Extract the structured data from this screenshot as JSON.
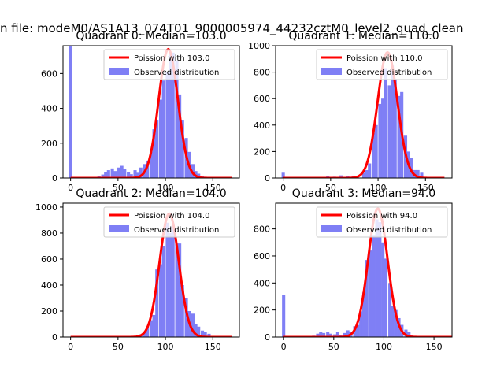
{
  "figure": {
    "suptitle": "n file: modeM0/AS1A13_074T01_9000005974_44232cztM0_level2_quad_clean"
  },
  "chart_data": [
    {
      "type": "bar",
      "title": "Quadrant 0: Median=103.0",
      "xlim": [
        -8,
        178
      ],
      "ylim": [
        0,
        760
      ],
      "xticks": [
        0,
        50,
        100,
        150
      ],
      "yticks": [
        0,
        200,
        400,
        600
      ],
      "legend": {
        "placement": "top-right",
        "line_label": "Poission with 103.0",
        "hist_label": "Observed distribution"
      },
      "poisson_mean": 103.0,
      "poisson_peak": 740,
      "hist": {
        "bin_width": 3.4,
        "bins": [
          {
            "x": 0,
            "y": 760
          },
          {
            "x": 30,
            "y": 12
          },
          {
            "x": 34,
            "y": 20
          },
          {
            "x": 37,
            "y": 32
          },
          {
            "x": 40,
            "y": 45
          },
          {
            "x": 44,
            "y": 55
          },
          {
            "x": 47,
            "y": 40
          },
          {
            "x": 51,
            "y": 60
          },
          {
            "x": 54,
            "y": 70
          },
          {
            "x": 57,
            "y": 50
          },
          {
            "x": 61,
            "y": 35
          },
          {
            "x": 64,
            "y": 22
          },
          {
            "x": 68,
            "y": 45
          },
          {
            "x": 71,
            "y": 30
          },
          {
            "x": 74,
            "y": 60
          },
          {
            "x": 78,
            "y": 80
          },
          {
            "x": 81,
            "y": 100
          },
          {
            "x": 85,
            "y": 150
          },
          {
            "x": 88,
            "y": 280
          },
          {
            "x": 91,
            "y": 330
          },
          {
            "x": 95,
            "y": 450
          },
          {
            "x": 98,
            "y": 560
          },
          {
            "x": 102,
            "y": 610
          },
          {
            "x": 105,
            "y": 710
          },
          {
            "x": 108,
            "y": 720
          },
          {
            "x": 112,
            "y": 670
          },
          {
            "x": 115,
            "y": 480
          },
          {
            "x": 118,
            "y": 330
          },
          {
            "x": 122,
            "y": 230
          },
          {
            "x": 125,
            "y": 150
          },
          {
            "x": 129,
            "y": 80
          },
          {
            "x": 132,
            "y": 40
          },
          {
            "x": 135,
            "y": 25
          },
          {
            "x": 139,
            "y": 10
          }
        ]
      }
    },
    {
      "type": "bar",
      "title": "Quadrant 1: Median=110.0",
      "xlim": [
        -8,
        178
      ],
      "ylim": [
        0,
        1000
      ],
      "xticks": [
        0,
        50,
        100,
        150
      ],
      "yticks": [
        0,
        200,
        400,
        600,
        800,
        1000
      ],
      "legend": {
        "placement": "top-right",
        "line_label": "Poission with 110.0",
        "hist_label": "Observed distribution"
      },
      "poisson_mean": 110.0,
      "poisson_peak": 950,
      "hist": {
        "bin_width": 3.4,
        "bins": [
          {
            "x": 0,
            "y": 40
          },
          {
            "x": 47,
            "y": 15
          },
          {
            "x": 54,
            "y": 10
          },
          {
            "x": 61,
            "y": 20
          },
          {
            "x": 68,
            "y": 12
          },
          {
            "x": 74,
            "y": 18
          },
          {
            "x": 78,
            "y": 10
          },
          {
            "x": 85,
            "y": 40
          },
          {
            "x": 88,
            "y": 60
          },
          {
            "x": 91,
            "y": 110
          },
          {
            "x": 95,
            "y": 340
          },
          {
            "x": 98,
            "y": 400
          },
          {
            "x": 102,
            "y": 560
          },
          {
            "x": 105,
            "y": 600
          },
          {
            "x": 108,
            "y": 830
          },
          {
            "x": 112,
            "y": 700
          },
          {
            "x": 115,
            "y": 850
          },
          {
            "x": 118,
            "y": 750
          },
          {
            "x": 122,
            "y": 620
          },
          {
            "x": 125,
            "y": 650
          },
          {
            "x": 129,
            "y": 320
          },
          {
            "x": 132,
            "y": 200
          },
          {
            "x": 135,
            "y": 150
          },
          {
            "x": 139,
            "y": 60
          },
          {
            "x": 142,
            "y": 60
          },
          {
            "x": 146,
            "y": 40
          }
        ]
      }
    },
    {
      "type": "bar",
      "title": "Quadrant 2: Median=104.0",
      "xlim": [
        -8,
        178
      ],
      "ylim": [
        0,
        1030
      ],
      "xticks": [
        0,
        50,
        100,
        150
      ],
      "yticks": [
        0,
        200,
        400,
        600,
        800,
        1000
      ],
      "legend": {
        "placement": "top-right",
        "line_label": "Poission with 104.0",
        "hist_label": "Observed distribution"
      },
      "poisson_mean": 104.0,
      "poisson_peak": 950,
      "hist": {
        "bin_width": 3.4,
        "bins": [
          {
            "x": 74,
            "y": 20
          },
          {
            "x": 78,
            "y": 40
          },
          {
            "x": 81,
            "y": 80
          },
          {
            "x": 85,
            "y": 130
          },
          {
            "x": 88,
            "y": 170
          },
          {
            "x": 91,
            "y": 520
          },
          {
            "x": 95,
            "y": 560
          },
          {
            "x": 98,
            "y": 700
          },
          {
            "x": 102,
            "y": 880
          },
          {
            "x": 105,
            "y": 800
          },
          {
            "x": 108,
            "y": 860
          },
          {
            "x": 112,
            "y": 720
          },
          {
            "x": 115,
            "y": 720
          },
          {
            "x": 118,
            "y": 400
          },
          {
            "x": 122,
            "y": 300
          },
          {
            "x": 125,
            "y": 200
          },
          {
            "x": 129,
            "y": 180
          },
          {
            "x": 132,
            "y": 100
          },
          {
            "x": 135,
            "y": 80
          },
          {
            "x": 139,
            "y": 50
          },
          {
            "x": 142,
            "y": 40
          },
          {
            "x": 146,
            "y": 25
          }
        ]
      }
    },
    {
      "type": "bar",
      "title": "Quadrant 3: Median=94.0",
      "xlim": [
        -8,
        168
      ],
      "ylim": [
        0,
        990
      ],
      "xticks": [
        0,
        50,
        100,
        150
      ],
      "yticks": [
        0,
        200,
        400,
        600,
        800
      ],
      "legend": {
        "placement": "top-right",
        "line_label": "Poission with 94.0",
        "hist_label": "Observed distribution"
      },
      "poisson_mean": 94.0,
      "poisson_peak": 950,
      "hist": {
        "bin_width": 3.2,
        "bins": [
          {
            "x": 0,
            "y": 310
          },
          {
            "x": 30,
            "y": 10
          },
          {
            "x": 34,
            "y": 25
          },
          {
            "x": 37,
            "y": 40
          },
          {
            "x": 40,
            "y": 30
          },
          {
            "x": 44,
            "y": 35
          },
          {
            "x": 47,
            "y": 25
          },
          {
            "x": 51,
            "y": 20
          },
          {
            "x": 54,
            "y": 35
          },
          {
            "x": 57,
            "y": 15
          },
          {
            "x": 61,
            "y": 30
          },
          {
            "x": 64,
            "y": 50
          },
          {
            "x": 67,
            "y": 40
          },
          {
            "x": 71,
            "y": 80
          },
          {
            "x": 74,
            "y": 90
          },
          {
            "x": 77,
            "y": 190
          },
          {
            "x": 80,
            "y": 330
          },
          {
            "x": 83,
            "y": 570
          },
          {
            "x": 87,
            "y": 640
          },
          {
            "x": 90,
            "y": 750
          },
          {
            "x": 93,
            "y": 870
          },
          {
            "x": 96,
            "y": 850
          },
          {
            "x": 99,
            "y": 700
          },
          {
            "x": 102,
            "y": 580
          },
          {
            "x": 106,
            "y": 400
          },
          {
            "x": 109,
            "y": 230
          },
          {
            "x": 112,
            "y": 200
          },
          {
            "x": 115,
            "y": 140
          },
          {
            "x": 118,
            "y": 90
          },
          {
            "x": 122,
            "y": 55
          },
          {
            "x": 125,
            "y": 40
          },
          {
            "x": 128,
            "y": 15
          }
        ]
      }
    }
  ]
}
